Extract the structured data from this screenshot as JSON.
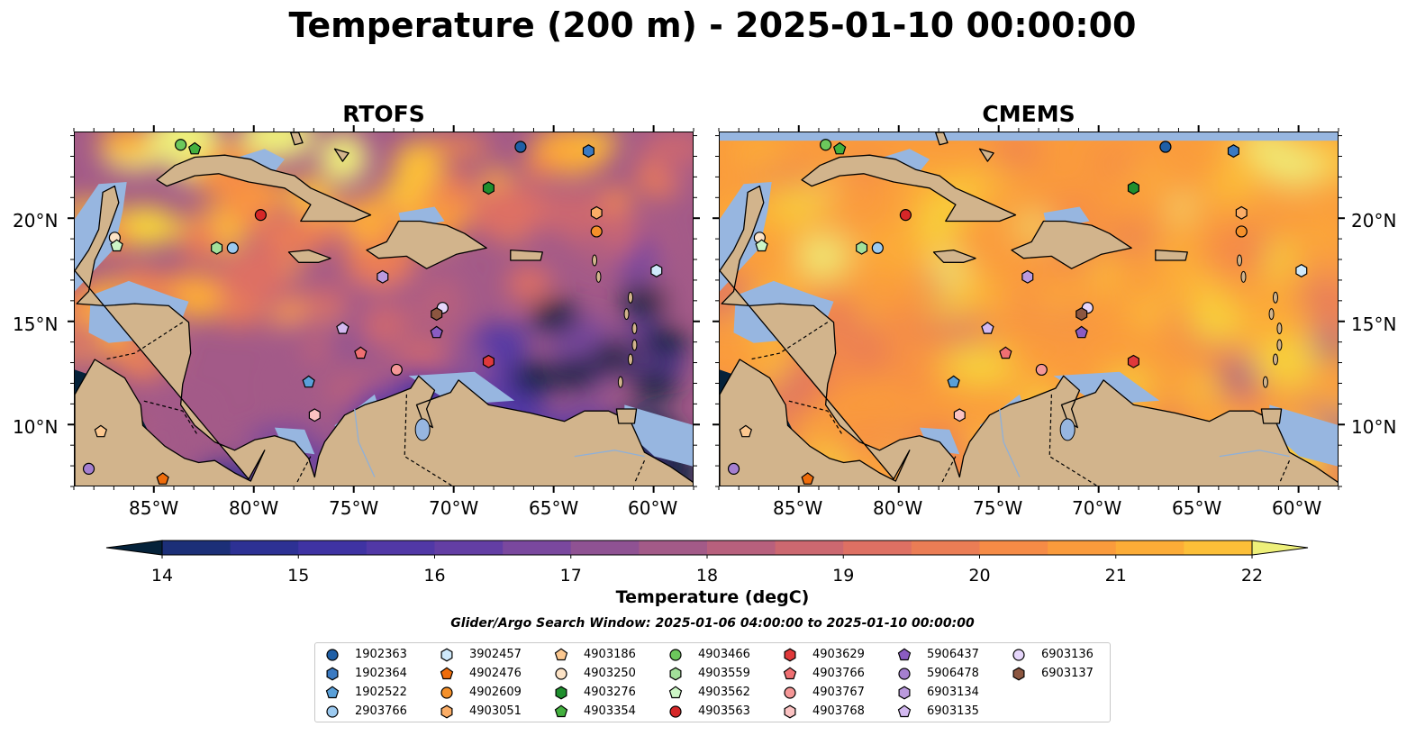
{
  "figure": {
    "title": "Temperature (200 m) - 2025-01-10 00:00:00",
    "panels": [
      {
        "title": "RTOFS"
      },
      {
        "title": "CMEMS"
      }
    ],
    "lat_ticks": [
      "20°N",
      "15°N",
      "10°N"
    ],
    "lon_ticks": [
      "85°W",
      "80°W",
      "75°W",
      "70°W",
      "65°W",
      "60°W"
    ],
    "extent": {
      "lon_min": -89,
      "lon_max": -58,
      "lat_min": 7,
      "lat_max": 24.2
    }
  },
  "colorbar": {
    "label": "Temperature (degC)",
    "ticks": [
      "14",
      "15",
      "16",
      "17",
      "18",
      "19",
      "20",
      "21",
      "22"
    ],
    "min": 14,
    "max": 22,
    "step": 0.5,
    "colors": [
      "#05223a",
      "#0b2a55",
      "#1c2f78",
      "#2d3194",
      "#3f33a3",
      "#5138a6",
      "#633ea4",
      "#7a489e",
      "#8f5293",
      "#a35a88",
      "#b8607d",
      "#cc6870",
      "#de7063",
      "#eb7d55",
      "#f68b46",
      "#fa9b3c",
      "#fcac37",
      "#fcbf38",
      "#f7d53b",
      "#eef07a"
    ]
  },
  "search_window": "Glider/Argo Search Window: 2025-01-06 04:00:00 to 2025-01-10 00:00:00",
  "colors": {
    "land": "#d2b48c",
    "shelf": "#97b6e0",
    "deep_low": "#05223a"
  },
  "legend": [
    {
      "id": "1902363",
      "color": "#1f5fa6",
      "marker": "circle"
    },
    {
      "id": "1902364",
      "color": "#3a7ac2",
      "marker": "hexagon"
    },
    {
      "id": "1902522",
      "color": "#5aa0d9",
      "marker": "pentagon"
    },
    {
      "id": "2903766",
      "color": "#9ccaf0",
      "marker": "circle"
    },
    {
      "id": "3902457",
      "color": "#cfe9fb",
      "marker": "hexagon"
    },
    {
      "id": "4902476",
      "color": "#ef6c0a",
      "marker": "pentagon"
    },
    {
      "id": "4902609",
      "color": "#f5902a",
      "marker": "circle"
    },
    {
      "id": "4903051",
      "color": "#fbad66",
      "marker": "hexagon"
    },
    {
      "id": "4903186",
      "color": "#fcc890",
      "marker": "pentagon"
    },
    {
      "id": "4903250",
      "color": "#fde3c6",
      "marker": "circle"
    },
    {
      "id": "4903276",
      "color": "#1f8f2e",
      "marker": "hexagon"
    },
    {
      "id": "4903354",
      "color": "#43b03f",
      "marker": "pentagon"
    },
    {
      "id": "4903466",
      "color": "#6cc85c",
      "marker": "circle"
    },
    {
      "id": "4903559",
      "color": "#a2e09a",
      "marker": "hexagon"
    },
    {
      "id": "4903562",
      "color": "#cdf6c6",
      "marker": "pentagon"
    },
    {
      "id": "4903563",
      "color": "#d62728",
      "marker": "circle"
    },
    {
      "id": "4903629",
      "color": "#e0393b",
      "marker": "hexagon"
    },
    {
      "id": "4903766",
      "color": "#ef6f72",
      "marker": "pentagon"
    },
    {
      "id": "4903767",
      "color": "#f59797",
      "marker": "circle"
    },
    {
      "id": "4903768",
      "color": "#fbc2c2",
      "marker": "hexagon"
    },
    {
      "id": "5906437",
      "color": "#8a5cc2",
      "marker": "pentagon"
    },
    {
      "id": "5906478",
      "color": "#a57fd0",
      "marker": "circle"
    },
    {
      "id": "6903134",
      "color": "#bb9ade",
      "marker": "hexagon"
    },
    {
      "id": "6903135",
      "color": "#d3b9f0",
      "marker": "pentagon"
    },
    {
      "id": "6903136",
      "color": "#e6d6fb",
      "marker": "circle"
    },
    {
      "id": "6903137",
      "color": "#8c5640",
      "marker": "hexagon"
    }
  ],
  "floats": [
    {
      "id": "1902363",
      "lon": -66.7,
      "lat": 23.5
    },
    {
      "id": "1902364",
      "lon": -63.3,
      "lat": 23.3
    },
    {
      "id": "1902522",
      "lon": -77.3,
      "lat": 12.1
    },
    {
      "id": "2903766",
      "lon": -81.1,
      "lat": 18.6
    },
    {
      "id": "3902457",
      "lon": -59.9,
      "lat": 17.5
    },
    {
      "id": "4902476",
      "lon": -84.6,
      "lat": 7.4
    },
    {
      "id": "4902609",
      "lon": -62.9,
      "lat": 19.4
    },
    {
      "id": "4903051",
      "lon": -62.9,
      "lat": 20.3
    },
    {
      "id": "4903186",
      "lon": -87.7,
      "lat": 9.7
    },
    {
      "id": "4903250",
      "lon": -87.0,
      "lat": 19.1
    },
    {
      "id": "4903276",
      "lon": -68.3,
      "lat": 21.5
    },
    {
      "id": "4903354",
      "lon": -83.0,
      "lat": 23.4
    },
    {
      "id": "4903466",
      "lon": -83.7,
      "lat": 23.6
    },
    {
      "id": "4903559",
      "lon": -81.9,
      "lat": 18.6
    },
    {
      "id": "4903562",
      "lon": -86.9,
      "lat": 18.7
    },
    {
      "id": "4903563",
      "lon": -79.7,
      "lat": 20.2
    },
    {
      "id": "4903629",
      "lon": -68.3,
      "lat": 13.1
    },
    {
      "id": "4903766",
      "lon": -74.7,
      "lat": 13.5
    },
    {
      "id": "4903767",
      "lon": -72.9,
      "lat": 12.7
    },
    {
      "id": "4903768",
      "lon": -77.0,
      "lat": 10.5
    },
    {
      "id": "5906437",
      "lon": -70.9,
      "lat": 14.5
    },
    {
      "id": "5906478",
      "lon": -88.3,
      "lat": 7.9
    },
    {
      "id": "6903134",
      "lon": -73.6,
      "lat": 17.2
    },
    {
      "id": "6903135",
      "lon": -75.6,
      "lat": 14.7
    },
    {
      "id": "6903136",
      "lon": -70.6,
      "lat": 15.7
    },
    {
      "id": "6903137",
      "lon": -70.9,
      "lat": 15.4
    }
  ]
}
